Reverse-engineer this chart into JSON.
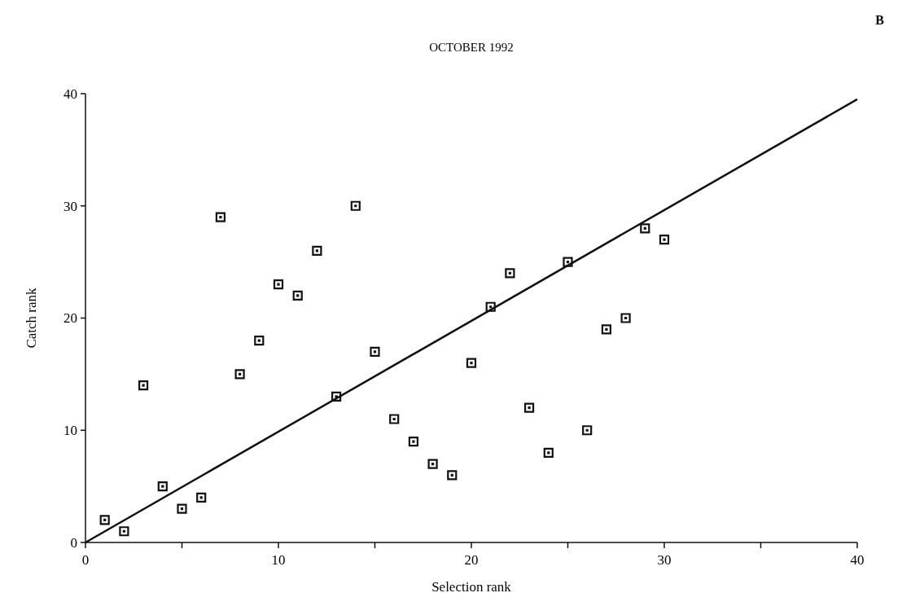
{
  "chart_data": {
    "type": "scatter",
    "title": "OCTOBER 1992",
    "xlabel": "Selection rank",
    "ylabel": "Catch rank",
    "annotations": [
      "B"
    ],
    "xlim": [
      0,
      40
    ],
    "ylim": [
      0,
      40
    ],
    "xticks": [
      0,
      {
        "value": 5,
        "label": null
      },
      10,
      {
        "value": 15,
        "label": null
      },
      20,
      {
        "value": 25,
        "label": null
      },
      30,
      {
        "value": 35,
        "label": null
      },
      40
    ],
    "yticks": [
      0,
      10,
      20,
      30,
      40
    ],
    "marker": "square",
    "grid": false,
    "series": [
      {
        "color": "#111111",
        "x": [
          1,
          2,
          3,
          4,
          5,
          6,
          7,
          8,
          9,
          10,
          11,
          12,
          13,
          14,
          15,
          16,
          17,
          18,
          19,
          20,
          21,
          22,
          23,
          24,
          25,
          26,
          27,
          28,
          29,
          30
        ],
        "values": [
          2,
          1,
          14,
          5,
          3,
          4,
          29,
          15,
          18,
          23,
          22,
          26,
          13,
          30,
          17,
          11,
          9,
          7,
          6,
          16,
          21,
          24,
          12,
          8,
          25,
          10,
          19,
          20,
          28,
          27
        ]
      },
      {
        "type": "line",
        "color": "#111111",
        "marker": "none",
        "x": [
          0,
          40
        ],
        "values": [
          0,
          39.5
        ]
      }
    ]
  }
}
